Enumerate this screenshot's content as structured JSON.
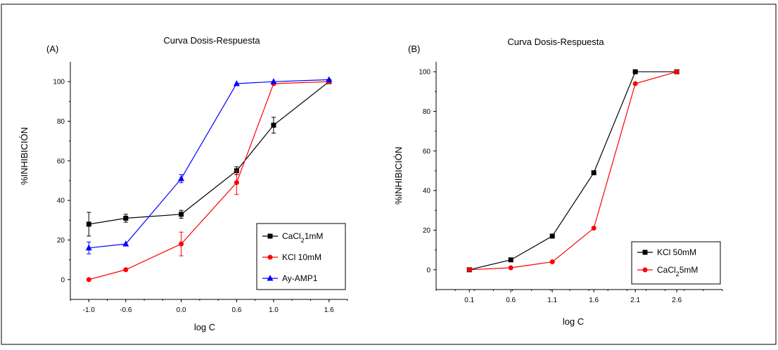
{
  "figure": {
    "border_color": "#000000"
  },
  "chart_data": [
    {
      "type": "line",
      "panel_label": "(A)",
      "title": "Curva Dosis-Respuesta",
      "xlabel": "log C",
      "ylabel": "%INHIBICIÓN",
      "xlim": [
        -1.2,
        1.8
      ],
      "ylim": [
        -10,
        110
      ],
      "xticks": [
        -1.0,
        -0.6,
        0.0,
        0.6,
        1.0,
        1.6
      ],
      "xtick_labels": [
        "-1.0",
        "-0.6",
        "0.0",
        "0.6",
        "1.0",
        "1.6"
      ],
      "yticks": [
        0,
        20,
        40,
        60,
        80,
        100
      ],
      "ytick_labels": [
        "0",
        "20",
        "40",
        "60",
        "80",
        "100"
      ],
      "grid": false,
      "legend_position": "bottom-right",
      "series": [
        {
          "name": "CaCl2 1mM",
          "name_parts": [
            "CaCl",
            "2",
            "1mM"
          ],
          "color": "#000000",
          "marker": "square",
          "x": [
            -1.0,
            -0.6,
            0.0,
            0.6,
            1.0,
            1.6
          ],
          "y": [
            28,
            31,
            33,
            55,
            78,
            100
          ],
          "yerr": [
            6,
            2,
            2,
            2,
            4,
            0
          ]
        },
        {
          "name": "KCl 10mM",
          "name_parts": [
            "KCl 10mM"
          ],
          "color": "#ff0000",
          "marker": "circle",
          "x": [
            -1.0,
            -0.6,
            0.0,
            0.6,
            1.0,
            1.6
          ],
          "y": [
            0,
            5,
            18,
            49,
            99,
            100
          ],
          "yerr": [
            0,
            0,
            6,
            6,
            0,
            0
          ]
        },
        {
          "name": "Ay-AMP1",
          "name_parts": [
            "Ay-AMP1"
          ],
          "color": "#0000ff",
          "marker": "triangle",
          "x": [
            -1.0,
            -0.6,
            0.0,
            0.6,
            1.0,
            1.6
          ],
          "y": [
            16,
            18,
            51,
            99,
            100,
            101
          ],
          "yerr": [
            3,
            0,
            2,
            0,
            0,
            0
          ]
        }
      ]
    },
    {
      "type": "line",
      "panel_label": "(B)",
      "title": "Curva Dosis-Respuesta",
      "xlabel": "log C",
      "ylabel": "%INHIBICIÓN",
      "xlim": [
        -0.3,
        3.15
      ],
      "ylim": [
        -10,
        105
      ],
      "xticks": [
        0.1,
        0.6,
        1.1,
        1.6,
        2.1,
        2.6
      ],
      "xtick_labels": [
        "0.1",
        "0.6",
        "1.1",
        "1.6",
        "2.1",
        "2.6"
      ],
      "yticks": [
        0,
        20,
        40,
        60,
        80,
        100
      ],
      "ytick_labels": [
        "0",
        "20",
        "40",
        "60",
        "80",
        "100"
      ],
      "grid": false,
      "legend_position": "bottom-right",
      "series": [
        {
          "name": "KCl 50mM",
          "name_parts": [
            "KCl 50mM"
          ],
          "color": "#000000",
          "marker": "square",
          "x": [
            0.1,
            0.6,
            1.1,
            1.6,
            2.1,
            2.6
          ],
          "y": [
            0,
            5,
            17,
            49,
            100,
            100
          ],
          "yerr": [
            0,
            0,
            0,
            0,
            0,
            0
          ]
        },
        {
          "name": "CaCl2 5mM",
          "name_parts": [
            "CaCl",
            "2",
            "5mM"
          ],
          "color": "#ff0000",
          "marker": "circle",
          "x": [
            0.1,
            0.6,
            1.1,
            1.6,
            2.1,
            2.6
          ],
          "y": [
            0,
            1,
            4,
            21,
            94,
            100
          ],
          "yerr": [
            0,
            0,
            0,
            0,
            0,
            0
          ]
        }
      ]
    }
  ]
}
